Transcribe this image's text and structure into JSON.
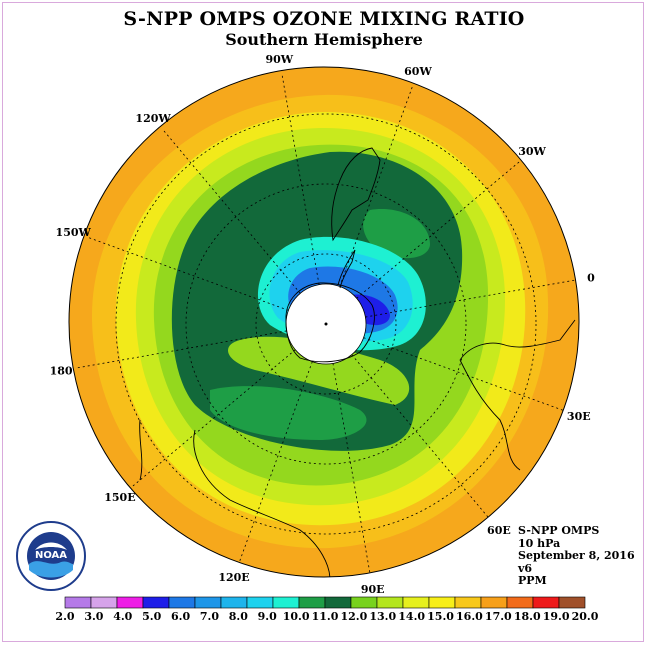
{
  "title": "S-NPP OMPS OZONE MIXING RATIO",
  "subtitle": "Southern Hemisphere",
  "longitude_labels": [
    "90W",
    "60W",
    "30W",
    "0",
    "30E",
    "60E",
    "90E",
    "120E",
    "150E",
    "180",
    "150W",
    "120W"
  ],
  "info": {
    "instrument": "S-NPP OMPS",
    "pressure": "10 hPa",
    "date": "September 8, 2016",
    "version": "v6",
    "units": "PPM"
  },
  "logo": {
    "icon": "noaa-logo",
    "text": "NOAA"
  },
  "colorbar": {
    "ticks": [
      "2.0",
      "3.0",
      "4.0",
      "5.0",
      "6.0",
      "7.0",
      "8.0",
      "9.0",
      "10.0",
      "11.0",
      "12.0",
      "13.0",
      "14.0",
      "15.0",
      "16.0",
      "17.0",
      "18.0",
      "19.0",
      "20.0"
    ],
    "colors": [
      "#b57ae8",
      "#d6a3ea",
      "#ee1ee6",
      "#1e1ee8",
      "#1e78e6",
      "#1e96e8",
      "#1eb4ec",
      "#1ed2ee",
      "#1ef0d2",
      "#1e9e46",
      "#12693a",
      "#78d21e",
      "#b4e61e",
      "#e6f01e",
      "#f8ef19",
      "#f8c81a",
      "#f7a01a",
      "#f26b1a",
      "#ee1a1a",
      "#a0502a"
    ]
  },
  "map_colors": {
    "ring_outer": "#f6a81c",
    "ring_orange2": "#f7bf1a",
    "ring_yellow": "#f2ea1a",
    "ring_yellowgreen": "#c8ea1e",
    "ring_lightgreen": "#94d81e",
    "dark_green": "#12693a",
    "mid_green": "#1e9e46",
    "cyan": "#1ef0d2",
    "light_blue": "#1ed2ee",
    "blue": "#1e78e6",
    "deep_blue": "#1e1ee8",
    "pole_hole": "#ffffff"
  }
}
